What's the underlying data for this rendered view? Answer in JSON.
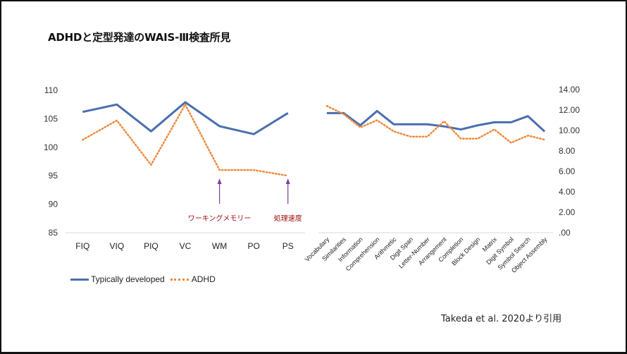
{
  "title": "ADHDと定型発達のWAIS-Ⅲ検査所見",
  "citation": "Takeda et al. 2020より引用",
  "colors": {
    "typical": "#4a6eb0",
    "adhd": "#ef8a3c",
    "annotation": "#a01010",
    "arrow": "#7b3fa0"
  },
  "legend": {
    "typical": "Typically developed",
    "adhd": "ADHD"
  },
  "chart_data": [
    {
      "type": "line",
      "title": "",
      "categories": [
        "FIQ",
        "VIQ",
        "PIQ",
        "VC",
        "WM",
        "PO",
        "PS"
      ],
      "ylim": [
        85,
        110
      ],
      "yticks": [
        "110",
        "105",
        "100",
        "95",
        "90",
        "85"
      ],
      "ytick_values": [
        110,
        105,
        100,
        95,
        90,
        85
      ],
      "series": [
        {
          "name": "Typically developed",
          "style": "solid",
          "values": [
            106.2,
            107.5,
            102.8,
            107.9,
            103.7,
            102.3,
            106.0
          ]
        },
        {
          "name": "ADHD",
          "style": "dotted",
          "values": [
            101.3,
            104.7,
            96.9,
            107.5,
            96.0,
            96.0,
            95.0
          ]
        }
      ],
      "annotations": [
        {
          "text": "ワーキングメモリー",
          "category": "WM"
        },
        {
          "text": "処理速度",
          "category": "PS"
        }
      ],
      "legend_position": "bottom-left"
    },
    {
      "type": "line",
      "title": "",
      "categories": [
        "Vocabulary",
        "Similarities",
        "Information",
        "Comprehension",
        "Arithmetic",
        "Digit Span",
        "Letter-Number",
        "Arrangement",
        "Completion",
        "Block Design",
        "Matrix",
        "Digit Symbol",
        "Symbol Search",
        "Object Assembly"
      ],
      "ylim": [
        0,
        14
      ],
      "yticks": [
        "14.00",
        "12.00",
        "10.00",
        "8.00",
        "6.00",
        "4.00",
        "2.00",
        ".00"
      ],
      "ytick_values": [
        14,
        12,
        10,
        8,
        6,
        4,
        2,
        0
      ],
      "series": [
        {
          "name": "Typically developed",
          "style": "solid",
          "values": [
            11.7,
            11.7,
            10.5,
            11.9,
            10.6,
            10.6,
            10.6,
            10.4,
            10.1,
            10.5,
            10.8,
            10.8,
            11.4,
            9.9
          ]
        },
        {
          "name": "ADHD",
          "style": "dotted",
          "values": [
            12.4,
            11.6,
            10.3,
            11.0,
            9.9,
            9.4,
            9.4,
            10.9,
            9.2,
            9.2,
            10.1,
            8.8,
            9.5,
            9.1
          ]
        }
      ]
    }
  ]
}
